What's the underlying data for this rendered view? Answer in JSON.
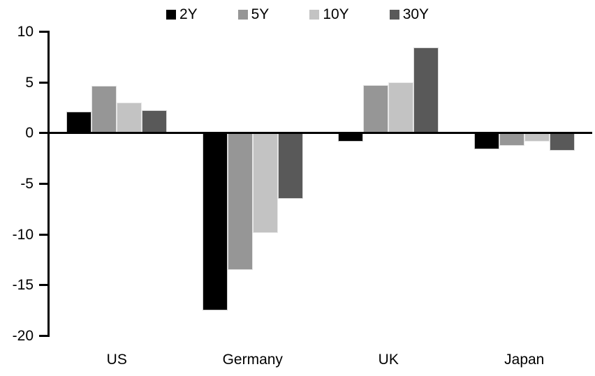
{
  "chart_data": {
    "type": "bar",
    "title": "",
    "xlabel": "",
    "ylabel": "",
    "categories": [
      "US",
      "Germany",
      "UK",
      "Japan"
    ],
    "series": [
      {
        "name": "2Y",
        "color": "#000000",
        "values": [
          2.1,
          -17.5,
          -0.9,
          -1.6
        ]
      },
      {
        "name": "5Y",
        "color": "#969696",
        "values": [
          4.6,
          -13.5,
          4.7,
          -1.3
        ]
      },
      {
        "name": "10Y",
        "color": "#c3c3c3",
        "values": [
          3.0,
          -9.9,
          5.0,
          -0.9
        ]
      },
      {
        "name": "30Y",
        "color": "#595959",
        "values": [
          2.2,
          -6.5,
          8.4,
          -1.8
        ]
      }
    ],
    "ylim": [
      -20,
      10
    ],
    "yticks": [
      10,
      5,
      0,
      -5,
      -10,
      -15,
      -20
    ],
    "grid": false,
    "legend_position": "top-center",
    "axis_color": "#000000",
    "background_color": "#ffffff"
  }
}
